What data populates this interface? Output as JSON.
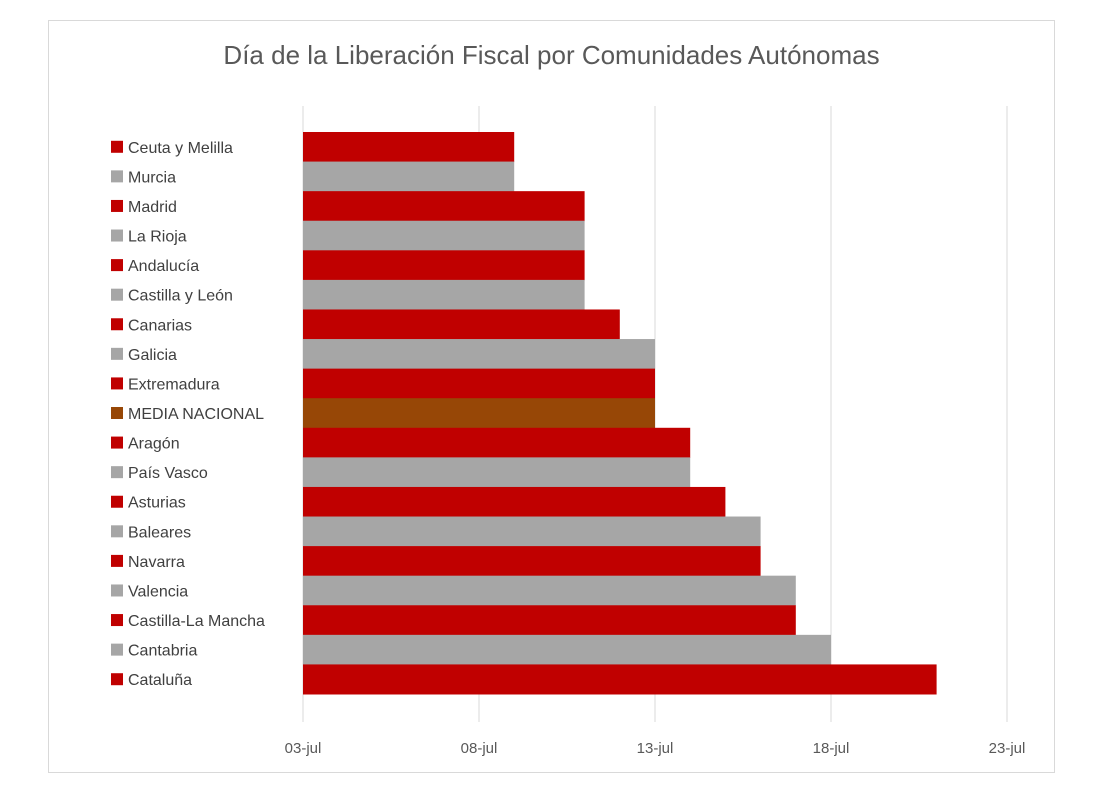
{
  "chart_data": {
    "type": "bar",
    "orientation": "horizontal",
    "title": "Día de la Liberación Fiscal por Comunidades Autónomas",
    "categories": [
      "Ceuta y Melilla",
      "Murcia",
      "Madrid",
      "La Rioja",
      "Andalucía",
      "Castilla y León",
      "Canarias",
      "Galicia",
      "Extremadura",
      "MEDIA NACIONAL",
      "Aragón",
      "País Vasco",
      "Asturias",
      "Baleares",
      "Navarra",
      "Valencia",
      "Castilla-La Mancha",
      "Cantabria",
      "Cataluña"
    ],
    "values": [
      "09-jul",
      "09-jul",
      "11-jul",
      "11-jul",
      "11-jul",
      "11-jul",
      "12-jul",
      "13-jul",
      "13-jul",
      "13-jul",
      "14-jul",
      "14-jul",
      "15-jul",
      "16-jul",
      "16-jul",
      "17-jul",
      "17-jul",
      "18-jul",
      "21-jul"
    ],
    "colors": [
      "#c00000",
      "#a6a6a6",
      "#c00000",
      "#a6a6a6",
      "#c00000",
      "#a6a6a6",
      "#c00000",
      "#a6a6a6",
      "#c00000",
      "#974706",
      "#c00000",
      "#a6a6a6",
      "#c00000",
      "#a6a6a6",
      "#c00000",
      "#a6a6a6",
      "#c00000",
      "#a6a6a6",
      "#c00000"
    ],
    "x_ticks": [
      "03-jul",
      "08-jul",
      "13-jul",
      "18-jul",
      "23-jul"
    ],
    "xlim": [
      "03-jul",
      "23-jul"
    ],
    "grid": "vertical",
    "legend": "left"
  }
}
